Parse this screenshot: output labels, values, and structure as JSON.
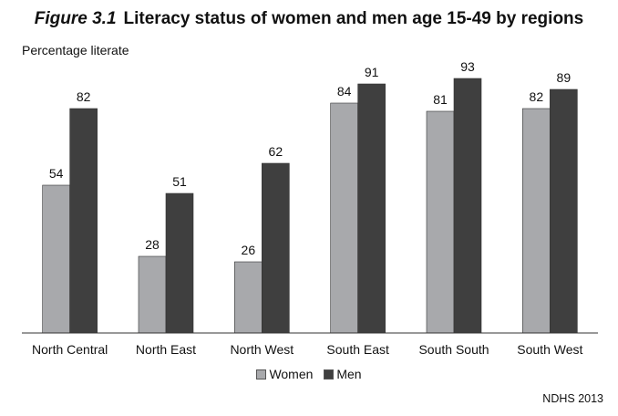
{
  "figure": {
    "label": "Figure 3.1",
    "title": "Literacy status of women and men age 15-49 by regions",
    "source": "NDHS 2013"
  },
  "chart_data": {
    "type": "bar",
    "title": "Literacy status of women and men age 15-49 by regions",
    "ylabel": "Percentage literate",
    "xlabel": "",
    "categories": [
      "North Central",
      "North East",
      "North West",
      "South East",
      "South South",
      "South West"
    ],
    "series": [
      {
        "name": "Women",
        "values": [
          54,
          28,
          26,
          84,
          81,
          82
        ],
        "color": "#a8a9ac"
      },
      {
        "name": "Men",
        "values": [
          82,
          51,
          62,
          91,
          93,
          89
        ],
        "color": "#3f3f3f"
      }
    ],
    "ylim": [
      0,
      100
    ],
    "grid": false,
    "legend": "bottom",
    "data_labels": true
  }
}
